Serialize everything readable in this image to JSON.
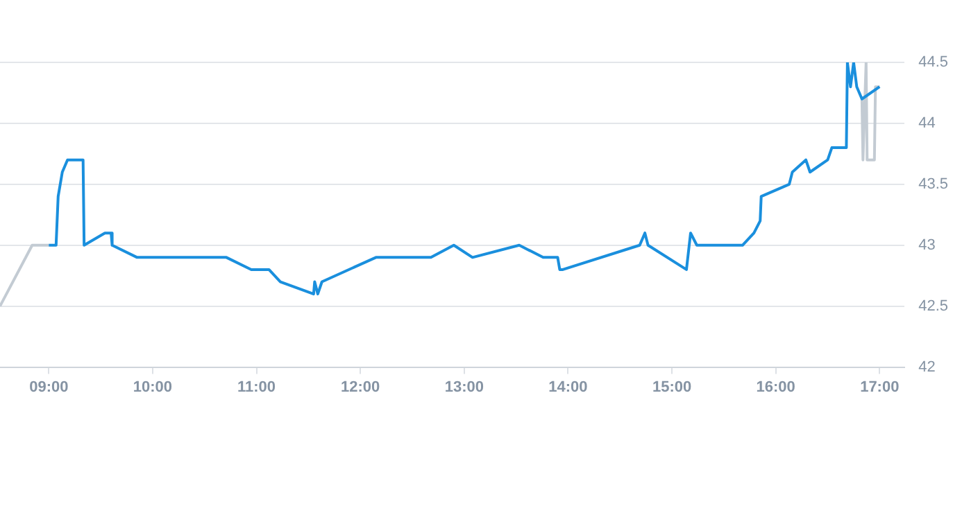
{
  "chart_data": {
    "type": "line",
    "xlim": [
      8.53,
      17.24
    ],
    "xticks": [
      {
        "value": 9,
        "label": "09:00"
      },
      {
        "value": 10,
        "label": "10:00"
      },
      {
        "value": 11,
        "label": "11:00"
      },
      {
        "value": 12,
        "label": "12:00"
      },
      {
        "value": 13,
        "label": "13:00"
      },
      {
        "value": 14,
        "label": "14:00"
      },
      {
        "value": 15,
        "label": "15:00"
      },
      {
        "value": 16,
        "label": "16:00"
      },
      {
        "value": 17,
        "label": "17:00"
      }
    ],
    "ylim": [
      42,
      44.5
    ],
    "yticks": [
      42,
      42.5,
      43,
      43.5,
      44,
      44.5
    ],
    "grid": "y",
    "legend": false,
    "marker": "none",
    "line_style": "solid",
    "series": [
      {
        "color": "#c3cbd3",
        "x": [
          8.53,
          8.84,
          9.0
        ],
        "values": [
          42.5,
          43.0,
          43.0
        ]
      },
      {
        "color": "#c3cbd3",
        "x": [
          16.83,
          16.84,
          16.87,
          16.88,
          16.95,
          16.96,
          17.0
        ],
        "values": [
          44.2,
          43.7,
          44.5,
          43.7,
          43.7,
          44.3,
          44.3
        ]
      },
      {
        "color": "#1a8fdd",
        "x": [
          9.0,
          9.07,
          9.09,
          9.13,
          9.18,
          9.33,
          9.34,
          9.54,
          9.6,
          9.61,
          9.85,
          10.71,
          10.95,
          11.12,
          11.23,
          11.55,
          11.56,
          11.59,
          11.63,
          12.15,
          12.68,
          12.9,
          13.08,
          13.53,
          13.76,
          13.9,
          13.92,
          13.95,
          14.69,
          14.74,
          14.77,
          15.14,
          15.18,
          15.24,
          15.68,
          15.79,
          15.85,
          15.86,
          16.13,
          16.16,
          16.29,
          16.33,
          16.5,
          16.54,
          16.68,
          16.69,
          16.72,
          16.75,
          16.78,
          16.83,
          17.0
        ],
        "values": [
          43.0,
          43.0,
          43.4,
          43.6,
          43.7,
          43.7,
          43.0,
          43.1,
          43.1,
          43.0,
          42.9,
          42.9,
          42.8,
          42.8,
          42.7,
          42.6,
          42.7,
          42.6,
          42.7,
          42.9,
          42.9,
          43.0,
          42.9,
          43.0,
          42.9,
          42.9,
          42.8,
          42.8,
          43.0,
          43.1,
          43.0,
          42.8,
          43.1,
          43.0,
          43.0,
          43.1,
          43.2,
          43.4,
          43.5,
          43.6,
          43.7,
          43.6,
          43.7,
          43.8,
          43.8,
          44.5,
          44.3,
          44.5,
          44.3,
          44.2,
          44.3
        ]
      }
    ]
  }
}
